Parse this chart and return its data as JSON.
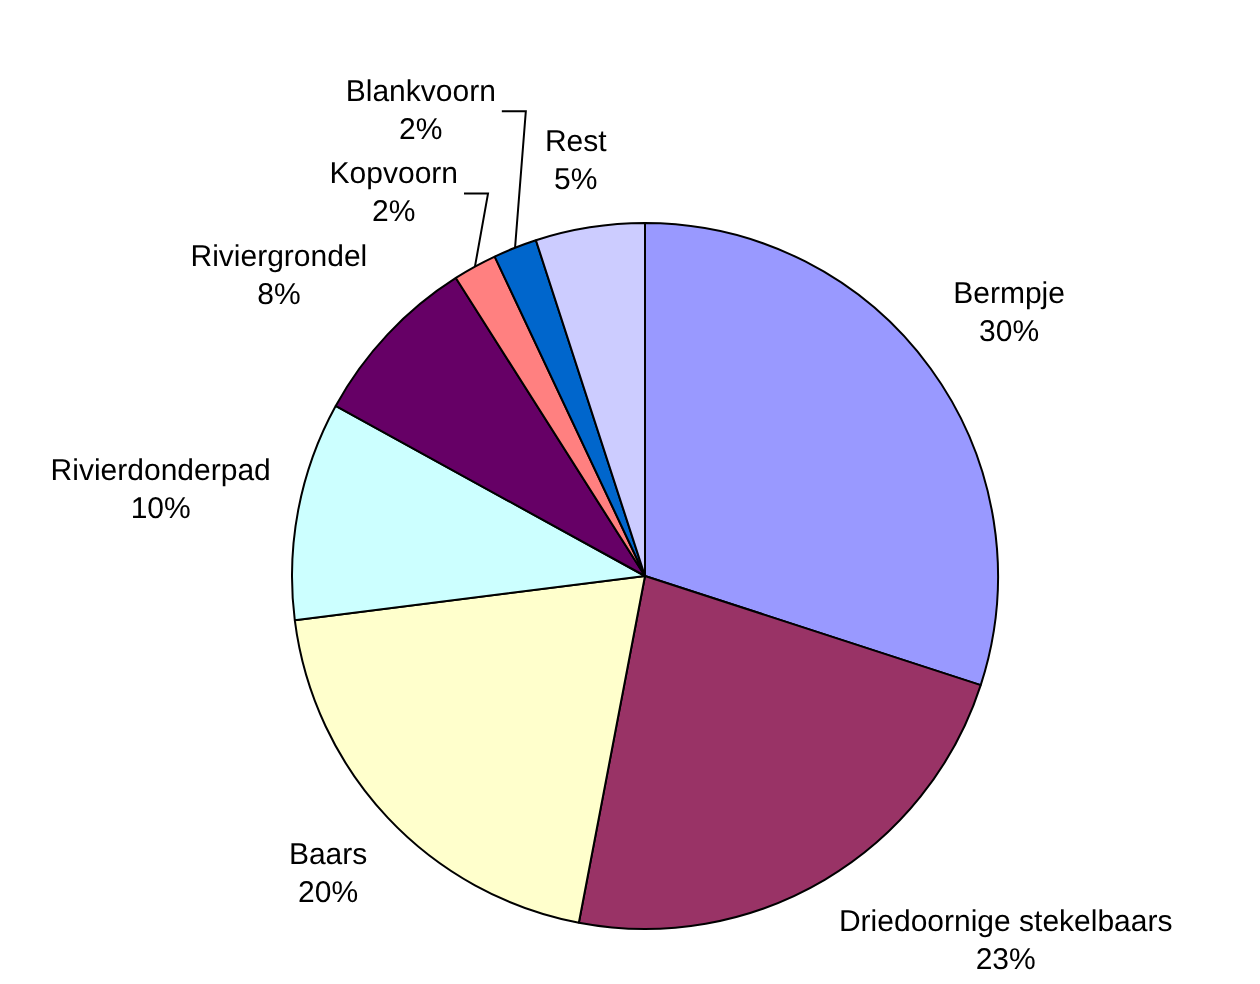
{
  "chart_data": {
    "type": "pie",
    "categories": [
      "Bermpje",
      "Driedoornige stekelbaars",
      "Baars",
      "Rivierdonderpad",
      "Riviergrondel",
      "Kopvoorn",
      "Blankvoorn",
      "Rest"
    ],
    "values": [
      30,
      23,
      20,
      10,
      8,
      2,
      2,
      5
    ],
    "colors": [
      "#9999ff",
      "#993366",
      "#ffffcc",
      "#ccffff",
      "#660066",
      "#ff8080",
      "#0066cc",
      "#ccccff"
    ],
    "value_labels": [
      "30%",
      "23%",
      "20%",
      "10%",
      "8%",
      "2%",
      "2%",
      "5%"
    ]
  }
}
